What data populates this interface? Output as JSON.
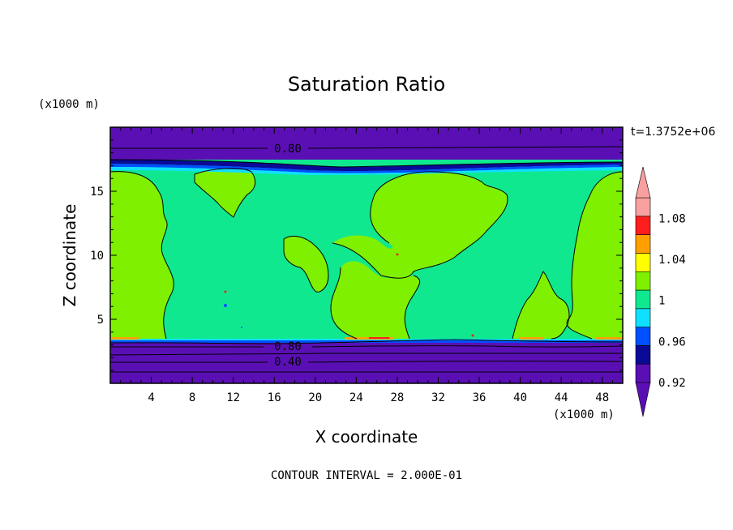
{
  "chart_data": {
    "type": "heatmap",
    "subtype": "filled-contour",
    "title": "Saturation Ratio",
    "time_label": "t=1.3752e+06",
    "x_unit": "(x1000 m)",
    "y_unit": "(x1000 m)",
    "xlabel": "X coordinate",
    "ylabel": "Z coordinate",
    "xlim": [
      0,
      50
    ],
    "ylim": [
      0,
      20
    ],
    "x_ticks": [
      "4",
      "8",
      "12",
      "16",
      "20",
      "24",
      "28",
      "32",
      "36",
      "40",
      "44",
      "48"
    ],
    "y_ticks": [
      "5",
      "10",
      "15"
    ],
    "footer": "CONTOUR INTERVAL = 2.000E-01",
    "contour_labels": [
      "0.80",
      "0.80",
      "0.40"
    ],
    "colorbar": {
      "labels": [
        "1.08",
        "1.04",
        "1",
        "0.96",
        "0.92"
      ],
      "levels": [
        0.92,
        0.94,
        0.96,
        0.98,
        1.0,
        1.02,
        1.04,
        1.06,
        1.08,
        1.1
      ],
      "colors": [
        "#5a0fb4",
        "#0a0a96",
        "#0050ff",
        "#10e0ff",
        "#10e890",
        "#7ef000",
        "#ffff00",
        "#ffa000",
        "#ff1e1e",
        "#f8a0a0"
      ],
      "under_color": "#5a0fb4",
      "over_color": "#f8a0a0"
    },
    "colors": {
      "band_purple": "#5a0fb4",
      "green": "#7ef000",
      "teal": "#10e890",
      "blue": "#0050ff",
      "cyan": "#10e0ff"
    }
  }
}
